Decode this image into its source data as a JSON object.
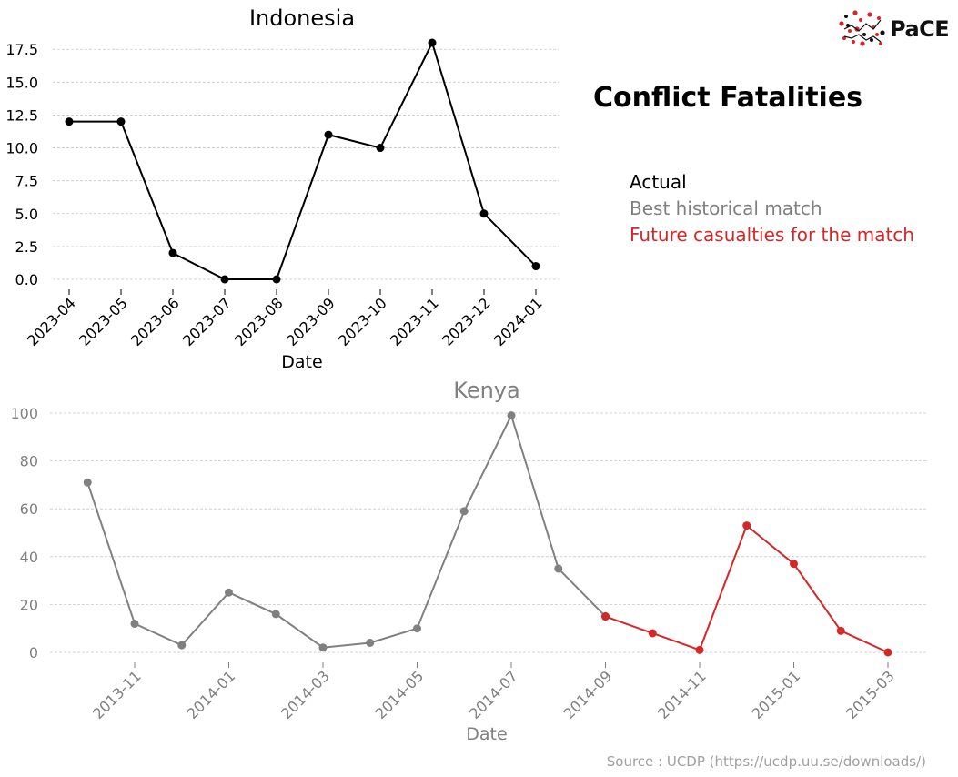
{
  "logo": {
    "text": "PaCE",
    "colors": {
      "dots": "#d62728",
      "line": "#111111"
    }
  },
  "main_title": "Conflict Fatalities",
  "legend": {
    "actual": {
      "label": "Actual",
      "color": "#000000"
    },
    "best_match": {
      "label": "Best historical match",
      "color": "#808080"
    },
    "future": {
      "label": "Future casualties for the match",
      "color": "#d62728"
    }
  },
  "source": "Source : UCDP (https://ucdp.uu.se/downloads/)",
  "chart_data": [
    {
      "type": "line",
      "title": "Indonesia",
      "xlabel": "Date",
      "ylabel": "",
      "x": [
        "2023-04",
        "2023-05",
        "2023-06",
        "2023-07",
        "2023-08",
        "2023-09",
        "2023-10",
        "2023-11",
        "2023-12",
        "2024-01"
      ],
      "yticks": [
        "0.0",
        "2.5",
        "5.0",
        "7.5",
        "10.0",
        "12.5",
        "15.0",
        "17.5"
      ],
      "ylim": [
        0,
        18
      ],
      "grid": true,
      "series": [
        {
          "values": [
            12,
            12,
            2,
            0,
            0,
            11,
            10,
            18,
            5,
            1
          ],
          "color": "#000000"
        }
      ]
    },
    {
      "type": "line",
      "title": "Kenya",
      "xlabel": "Date",
      "ylabel": "",
      "xticks": [
        "2013-11",
        "2014-01",
        "2014-03",
        "2014-05",
        "2014-07",
        "2014-09",
        "2014-11",
        "2015-01",
        "2015-03"
      ],
      "yticks": [
        "0",
        "20",
        "40",
        "60",
        "80",
        "100"
      ],
      "ylim": [
        0,
        100
      ],
      "grid": true,
      "series": [
        {
          "x": [
            "2013-10",
            "2013-11",
            "2013-12",
            "2014-01",
            "2014-02",
            "2014-03",
            "2014-04",
            "2014-05",
            "2014-06",
            "2014-07",
            "2014-08",
            "2014-09"
          ],
          "values": [
            71,
            12,
            3,
            25,
            16,
            2,
            4,
            10,
            59,
            99,
            35,
            15
          ],
          "color": "#808080"
        },
        {
          "x": [
            "2014-09",
            "2014-10",
            "2014-11",
            "2014-12",
            "2015-01",
            "2015-02",
            "2015-03"
          ],
          "values": [
            15,
            8,
            1,
            53,
            37,
            9,
            0
          ],
          "color": "#d62728"
        }
      ]
    }
  ]
}
